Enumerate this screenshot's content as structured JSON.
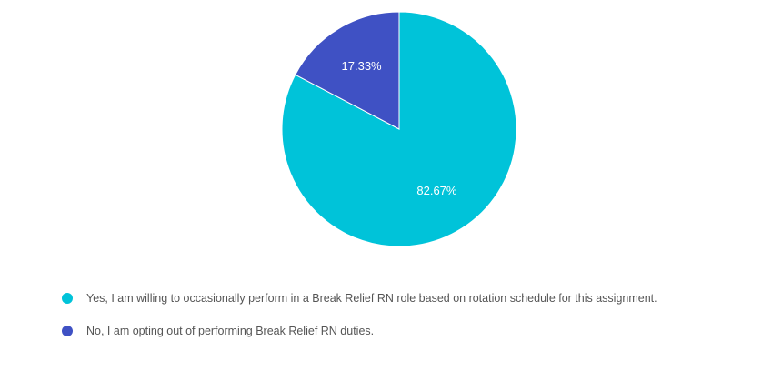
{
  "chart_data": {
    "type": "pie",
    "title": "",
    "legend_position": "bottom",
    "slices": [
      {
        "label": "Yes, I am willing to occasionally perform in a Break Relief RN role based on rotation schedule for this assignment.",
        "value": 82.67,
        "value_label": "82.67%",
        "color": "#00C3D9"
      },
      {
        "label": "No, I am opting out of performing Break Relief RN duties.",
        "value": 17.33,
        "value_label": "17.33%",
        "color": "#3F51C4"
      }
    ]
  }
}
